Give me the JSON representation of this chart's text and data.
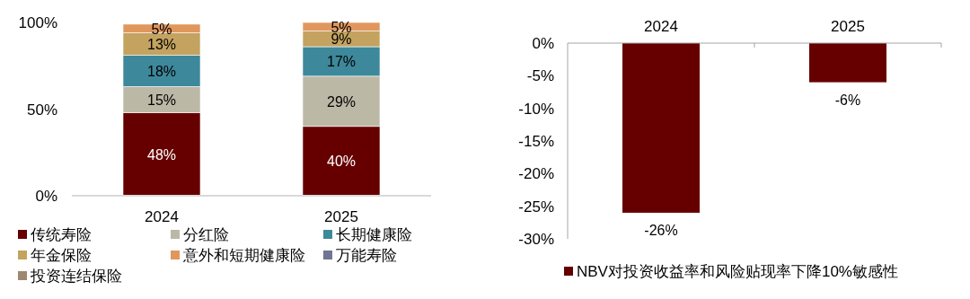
{
  "chart_data": [
    {
      "type": "bar",
      "stacked": true,
      "categories": [
        "2024",
        "2025"
      ],
      "ylim": [
        0,
        100
      ],
      "yticks": [
        {
          "value": 0,
          "label": "0%"
        },
        {
          "value": 50,
          "label": "50%"
        },
        {
          "value": 100,
          "label": "100%"
        }
      ],
      "legend": "bottom",
      "grid": false,
      "series": [
        {
          "name": "传统寿险",
          "color": "#660000",
          "values": [
            48,
            40
          ],
          "value_labels": [
            "48%",
            "40%"
          ]
        },
        {
          "name": "分红险",
          "color": "#bcb8a6",
          "values": [
            15,
            29
          ],
          "value_labels": [
            "15%",
            "29%"
          ]
        },
        {
          "name": "长期健康险",
          "color": "#3d889b",
          "values": [
            18,
            17
          ],
          "value_labels": [
            "18%",
            "17%"
          ]
        },
        {
          "name": "年金保险",
          "color": "#c3a35f",
          "values": [
            13,
            9
          ],
          "value_labels": [
            "13%",
            "9%"
          ]
        },
        {
          "name": "意外和短期健康险",
          "color": "#e0975e",
          "values": [
            5,
            5
          ],
          "value_labels": [
            "5%",
            "5%"
          ]
        },
        {
          "name": "万能寿险",
          "color": "#707591",
          "values": [
            0,
            0
          ],
          "value_labels": [
            null,
            null
          ]
        },
        {
          "name": "投资连结保险",
          "color": "#9e8872",
          "values": [
            0,
            0
          ],
          "value_labels": [
            null,
            null
          ]
        }
      ]
    },
    {
      "type": "bar",
      "categories": [
        "2024",
        "2025"
      ],
      "ylim": [
        -30,
        0
      ],
      "yticks": [
        {
          "value": -30,
          "label": "-30%"
        },
        {
          "value": -25,
          "label": "-25%"
        },
        {
          "value": -20,
          "label": "-20%"
        },
        {
          "value": -15,
          "label": "-15%"
        },
        {
          "value": -10,
          "label": "-10%"
        },
        {
          "value": -5,
          "label": "-5%"
        },
        {
          "value": 0,
          "label": "0%"
        }
      ],
      "legend": "bottom",
      "grid": false,
      "series": [
        {
          "name": "NBV对投资收益率和风险贴现率下降10%敏感性",
          "color": "#660000",
          "values": [
            -26,
            -6
          ],
          "value_labels": [
            "-26%",
            "-6%"
          ]
        }
      ]
    }
  ]
}
